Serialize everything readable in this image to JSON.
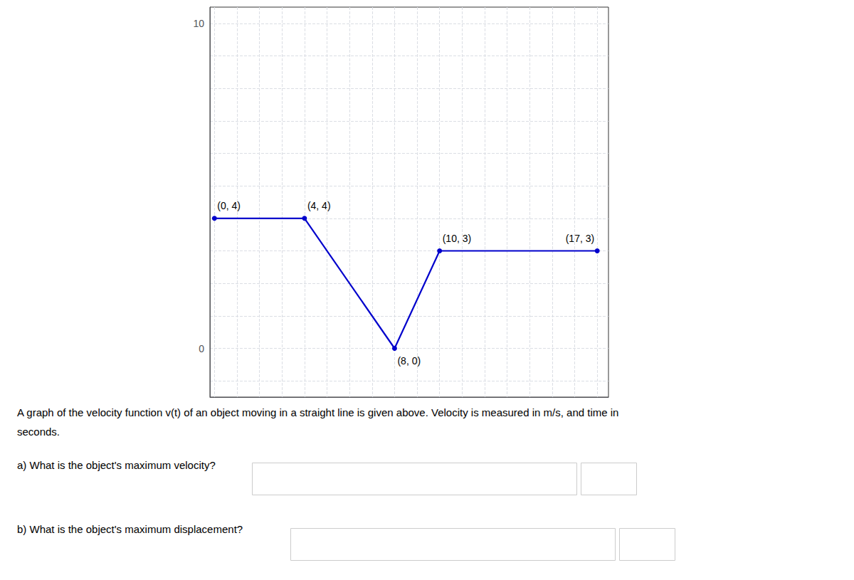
{
  "chart_data": {
    "type": "line",
    "x": [
      0,
      4,
      8,
      10,
      17
    ],
    "values": [
      4,
      4,
      0,
      3,
      3
    ],
    "color": "#0000cc",
    "marker": "circle",
    "xlim": [
      -0.2,
      17.5
    ],
    "ylim": [
      -1.5,
      10.5
    ],
    "yticks": [
      0,
      10
    ],
    "tick_labels": "y",
    "grid": true,
    "annotations": [
      {
        "x": 0,
        "y": 4,
        "label": "(0, 4)"
      },
      {
        "x": 4,
        "y": 4,
        "label": "(4, 4)"
      },
      {
        "x": 8,
        "y": 0,
        "label": "(8, 0)"
      },
      {
        "x": 10,
        "y": 3,
        "label": "(10, 3)"
      },
      {
        "x": 17,
        "y": 3,
        "label": "(17, 3)"
      }
    ],
    "caption": [
      "A graph of the velocity function v(t) of an object moving in a straight line is given above. Velocity is measured in m/s, and time in",
      "seconds."
    ],
    "questions": [
      "a) What is the object's maximum velocity?",
      "b) What is the object's maximum displacement?"
    ]
  }
}
